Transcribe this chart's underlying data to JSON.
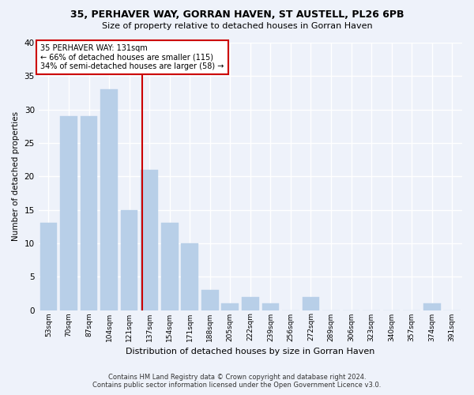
{
  "title": "35, PERHAVER WAY, GORRAN HAVEN, ST AUSTELL, PL26 6PB",
  "subtitle": "Size of property relative to detached houses in Gorran Haven",
  "xlabel": "Distribution of detached houses by size in Gorran Haven",
  "ylabel": "Number of detached properties",
  "footer_line1": "Contains HM Land Registry data © Crown copyright and database right 2024.",
  "footer_line2": "Contains public sector information licensed under the Open Government Licence v3.0.",
  "bin_labels": [
    "53sqm",
    "70sqm",
    "87sqm",
    "104sqm",
    "121sqm",
    "137sqm",
    "154sqm",
    "171sqm",
    "188sqm",
    "205sqm",
    "222sqm",
    "239sqm",
    "256sqm",
    "272sqm",
    "289sqm",
    "306sqm",
    "323sqm",
    "340sqm",
    "357sqm",
    "374sqm",
    "391sqm"
  ],
  "bar_values": [
    13,
    29,
    29,
    33,
    15,
    21,
    13,
    10,
    3,
    1,
    2,
    1,
    0,
    2,
    0,
    0,
    0,
    0,
    0,
    1,
    0
  ],
  "bar_color": "#b8cfe8",
  "bar_edge_color": "#b8cfe8",
  "property_label": "35 PERHAVER WAY: 131sqm",
  "annotation_line1": "← 66% of detached houses are smaller (115)",
  "annotation_line2": "34% of semi-detached houses are larger (58) →",
  "vline_color": "#cc0000",
  "ylim": [
    0,
    40
  ],
  "yticks": [
    0,
    5,
    10,
    15,
    20,
    25,
    30,
    35,
    40
  ],
  "background_color": "#eef2fa",
  "axes_background": "#eef2fa",
  "grid_color": "#ffffff"
}
